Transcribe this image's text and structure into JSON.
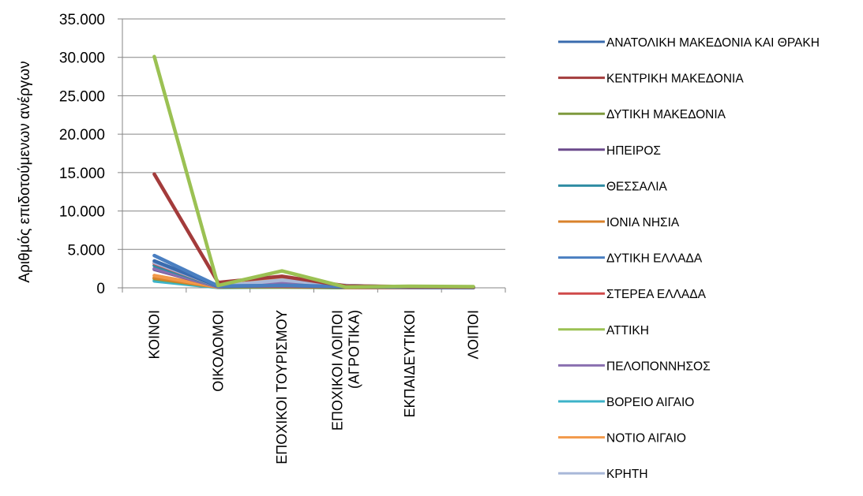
{
  "chart_data": {
    "type": "line",
    "ylabel": "Αριθμός επιδοτούμενων ανέργων",
    "xlabel": "",
    "ylim": [
      0,
      35000
    ],
    "yticks": [
      0,
      5000,
      10000,
      15000,
      20000,
      25000,
      30000,
      35000
    ],
    "ytick_labels": [
      "0",
      "5.000",
      "10.000",
      "15.000",
      "20.000",
      "25.000",
      "30.000",
      "35.000"
    ],
    "grid": true,
    "legend_position": "right",
    "categories": [
      [
        "ΚΟΙΝΟΙ"
      ],
      [
        "ΟΙΚΟΔΟΜΟΙ"
      ],
      [
        "ΕΠΟΧΙΚΟΙ ΤΟΥΡΙΣΜΟΥ"
      ],
      [
        "ΕΠΟΧΙΚΟΙ ΛΟΙΠΟΙ",
        "(ΑΓΡΟΤΙΚΑ)"
      ],
      [
        "ΕΚΠΑΙΔΕΥΤΙΚΟΙ"
      ],
      [
        "ΛΟΙΠΟΙ"
      ]
    ],
    "series": [
      {
        "name": "ΑΝΑΤΟΛΙΚΗ ΜΑΚΕΔΟΝΙΑ ΚΑΙ ΘΡΑΚΗ",
        "color": "#3A6BAE",
        "values": [
          3500,
          200,
          300,
          150,
          80,
          60
        ]
      },
      {
        "name": "ΚΕΝΤΡΙΚΗ ΜΑΚΕΔΟΝΙΑ",
        "color": "#A33B3B",
        "values": [
          14800,
          700,
          1500,
          250,
          150,
          100
        ]
      },
      {
        "name": "ΔΥΤΙΚΗ ΜΑΚΕΔΟΝΙΑ",
        "color": "#7E9A3E",
        "values": [
          1200,
          100,
          100,
          50,
          30,
          20
        ]
      },
      {
        "name": "ΗΠΕΙΡΟΣ",
        "color": "#6B4A8C",
        "values": [
          2400,
          150,
          400,
          100,
          60,
          40
        ]
      },
      {
        "name": "ΘΕΣΣΑΛΙΑ",
        "color": "#2F8CA3",
        "values": [
          2900,
          200,
          300,
          300,
          80,
          60
        ]
      },
      {
        "name": "ΙΟΝΙΑ ΝΗΣΙΑ",
        "color": "#D9822B",
        "values": [
          1300,
          100,
          900,
          50,
          30,
          20
        ]
      },
      {
        "name": "ΔΥΤΙΚΗ ΕΛΛΑΔΑ",
        "color": "#4A7FC1",
        "values": [
          4200,
          250,
          300,
          200,
          100,
          70
        ]
      },
      {
        "name": "ΣΤΕΡΕΑ ΕΛΛΑΔΑ",
        "color": "#D04A4A",
        "values": [
          3200,
          200,
          200,
          150,
          70,
          50
        ]
      },
      {
        "name": "ΑΤΤΙΚΗ",
        "color": "#9BC153",
        "values": [
          30100,
          300,
          2200,
          100,
          200,
          150
        ]
      },
      {
        "name": "ΠΕΛΟΠΟΝΝΗΣΟΣ",
        "color": "#8A6FB0",
        "values": [
          2500,
          150,
          600,
          250,
          60,
          40
        ]
      },
      {
        "name": "ΒΟΡΕΙΟ ΑΙΓΑΙΟ",
        "color": "#3DB3C9",
        "values": [
          900,
          50,
          100,
          30,
          20,
          10
        ]
      },
      {
        "name": "ΝΟΤΙΟ ΑΙΓΑΙΟ",
        "color": "#F2994A",
        "values": [
          1600,
          100,
          1200,
          50,
          40,
          30
        ]
      },
      {
        "name": "ΚΡΗΤΗ",
        "color": "#A9B8D9",
        "values": [
          3300,
          200,
          1000,
          300,
          80,
          60
        ]
      }
    ]
  }
}
